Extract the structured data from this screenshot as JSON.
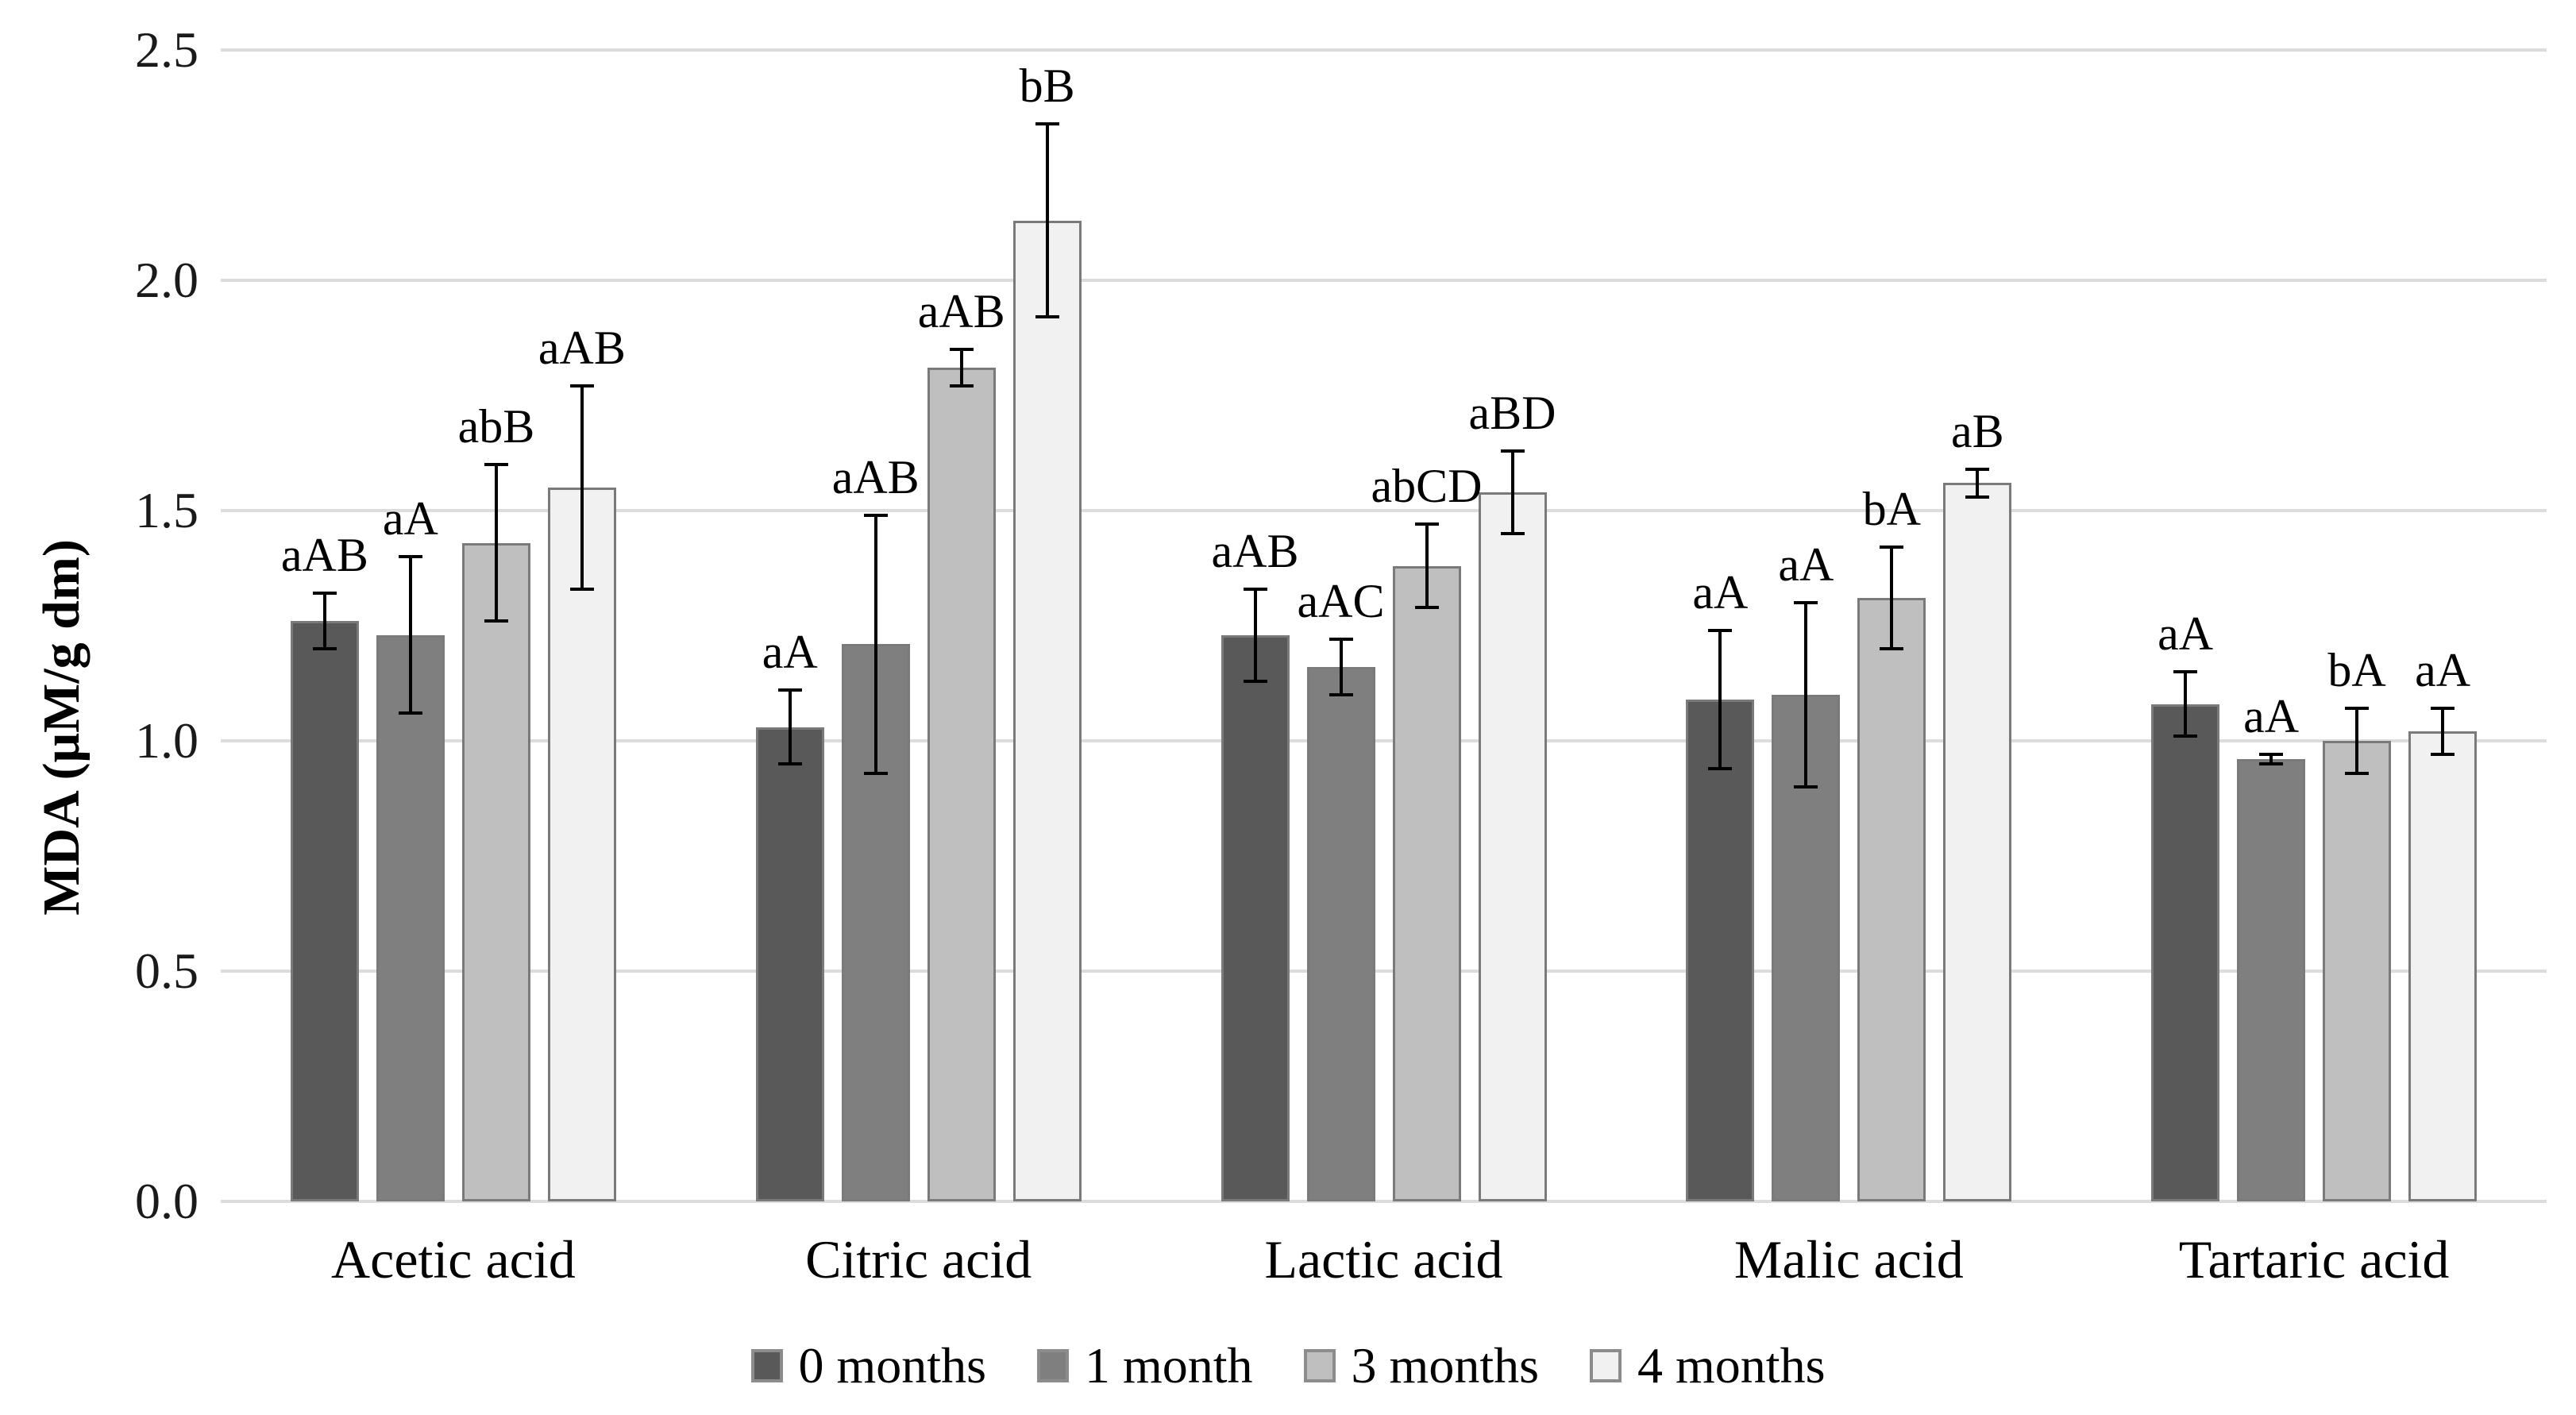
{
  "chart_data": {
    "type": "bar",
    "title": "",
    "xlabel": "",
    "ylabel": "MDA (μM/g dm)",
    "ylim": [
      0.0,
      2.5
    ],
    "yticks": [
      0.0,
      0.5,
      1.0,
      1.5,
      2.0,
      2.5
    ],
    "ytick_labels": [
      "0.0",
      "0.5",
      "1.0",
      "1.5",
      "2.0",
      "2.5"
    ],
    "grid": true,
    "legend_position": "bottom",
    "categories": [
      "Acetic acid",
      "Citric acid",
      "Lactic acid",
      "Malic acid",
      "Tartaric acid"
    ],
    "series": [
      {
        "name": "0 months",
        "fill": "#595959",
        "values": [
          1.26,
          1.03,
          1.23,
          1.09,
          1.08
        ],
        "errors": [
          0.06,
          0.08,
          0.1,
          0.15,
          0.07
        ],
        "point_labels": [
          "aAB",
          "aA",
          "aAB",
          "aA",
          "aA"
        ]
      },
      {
        "name": "1 month",
        "fill": "#7f7f7f",
        "values": [
          1.23,
          1.21,
          1.16,
          1.1,
          0.96
        ],
        "errors": [
          0.17,
          0.28,
          0.06,
          0.2,
          0.01
        ],
        "point_labels": [
          "aA",
          "aAB",
          "aAC",
          "aA",
          "aA"
        ]
      },
      {
        "name": "3 months",
        "fill": "#bfbfbf",
        "values": [
          1.43,
          1.81,
          1.38,
          1.31,
          1.0
        ],
        "errors": [
          0.17,
          0.04,
          0.09,
          0.11,
          0.07
        ],
        "point_labels": [
          "abB",
          "aAB",
          "abCD",
          "bA",
          "bA"
        ]
      },
      {
        "name": "4 months",
        "fill": "#f1f1f1",
        "values": [
          1.55,
          2.13,
          1.54,
          1.56,
          1.02
        ],
        "errors": [
          0.22,
          0.21,
          0.09,
          0.03,
          0.05
        ],
        "point_labels": [
          "aAB",
          "bB",
          "aBD",
          "aB",
          "aA"
        ]
      }
    ],
    "colors": {
      "bar_border": "#7a7a7a",
      "error_bar": "#000000",
      "gridline": "#dcdcdc",
      "text": "#000000"
    }
  }
}
